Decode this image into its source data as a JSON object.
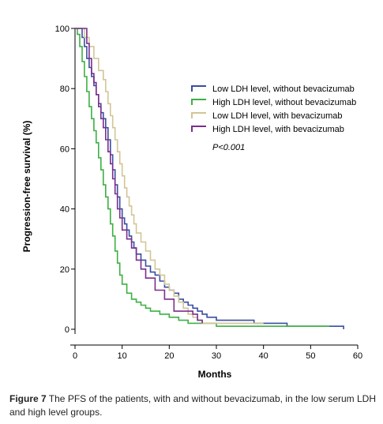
{
  "chart_data": {
    "type": "line",
    "subtype": "kaplan-meier-step",
    "xlabel": "Months",
    "ylabel": "Progression-free survival (%)",
    "xlim": [
      0,
      60
    ],
    "ylim": [
      0,
      100
    ],
    "xticks": [
      0,
      10,
      20,
      30,
      40,
      50,
      60
    ],
    "yticks": [
      0,
      20,
      40,
      60,
      80,
      100
    ],
    "grid": false,
    "legend_position": "upper-right",
    "annotation": "P<0.001",
    "series": [
      {
        "name": "Low LDH level, without bevacizumab",
        "color": "#3a4ea0",
        "x": [
          0,
          1,
          1.5,
          2,
          2.5,
          3,
          3.5,
          4,
          4.5,
          5,
          5.5,
          6,
          6.5,
          7,
          7.5,
          8,
          8.5,
          9,
          9.5,
          10,
          10.5,
          11,
          11.5,
          12,
          12.5,
          13,
          14,
          15,
          16,
          17,
          18,
          19,
          20,
          21,
          22,
          23,
          24,
          25,
          26,
          27,
          28,
          30,
          32,
          35,
          38,
          40,
          45,
          50,
          55,
          56,
          57
        ],
        "y": [
          100,
          100,
          97,
          94,
          90,
          87,
          84,
          81,
          78,
          75,
          72,
          70,
          67,
          63,
          58,
          53,
          48,
          44,
          40,
          37,
          35,
          33,
          31,
          29,
          27,
          25,
          23,
          21,
          19,
          18,
          16,
          14,
          13,
          12,
          10,
          9,
          8,
          7,
          6,
          5,
          4,
          3,
          3,
          3,
          2,
          2,
          1,
          1,
          1,
          1,
          0
        ]
      },
      {
        "name": "High LDH level, without bevacizumab",
        "color": "#3cb043",
        "x": [
          0,
          0.5,
          1,
          1.5,
          2,
          2.5,
          3,
          3.5,
          4,
          4.5,
          5,
          5.5,
          6,
          6.5,
          7,
          7.5,
          8,
          8.5,
          9,
          9.5,
          10,
          11,
          12,
          13,
          14,
          15,
          16,
          18,
          20,
          22,
          24,
          26,
          30,
          40,
          50,
          54
        ],
        "y": [
          100,
          98,
          94,
          89,
          84,
          79,
          74,
          70,
          66,
          62,
          57,
          53,
          48,
          44,
          40,
          35,
          31,
          26,
          22,
          18,
          15,
          12,
          10,
          9,
          8,
          7,
          6,
          5,
          4,
          3,
          2,
          2,
          1,
          1,
          1,
          1
        ]
      },
      {
        "name": "Low LDH level, with bevacizumab",
        "color": "#d2c596",
        "x": [
          0,
          2,
          3,
          4,
          5,
          6,
          6.5,
          7,
          7.5,
          8,
          8.5,
          9,
          9.5,
          10,
          10.5,
          11,
          11.5,
          12,
          12.5,
          13,
          14,
          15,
          16,
          17,
          18,
          19,
          20,
          21,
          22,
          23,
          24,
          25,
          26,
          27,
          30,
          40
        ],
        "y": [
          100,
          97,
          94,
          90,
          86,
          83,
          79,
          75,
          71,
          67,
          63,
          59,
          55,
          51,
          47,
          44,
          41,
          38,
          35,
          32,
          29,
          26,
          23,
          20,
          18,
          15,
          13,
          11,
          9,
          7,
          5,
          4,
          3,
          2,
          2,
          2
        ]
      },
      {
        "name": "High LDH level, with bevacizumab",
        "color": "#7a2e8e",
        "x": [
          0,
          2.5,
          3,
          3.5,
          4,
          4.5,
          5,
          5.5,
          6,
          6.5,
          7,
          7.5,
          8,
          8.5,
          9,
          9.5,
          10,
          11,
          12,
          13,
          14,
          15,
          17,
          19,
          21,
          25,
          26,
          27
        ],
        "y": [
          100,
          95,
          90,
          85,
          82,
          78,
          74,
          70,
          67,
          63,
          59,
          55,
          50,
          45,
          40,
          37,
          33,
          30,
          27,
          23,
          20,
          17,
          13,
          10,
          6,
          5,
          3,
          2
        ]
      }
    ]
  },
  "caption": {
    "label": "Figure 7",
    "text": " The PFS of the patients, with and without bevacizumab, in the low serum LDH and high level groups."
  }
}
